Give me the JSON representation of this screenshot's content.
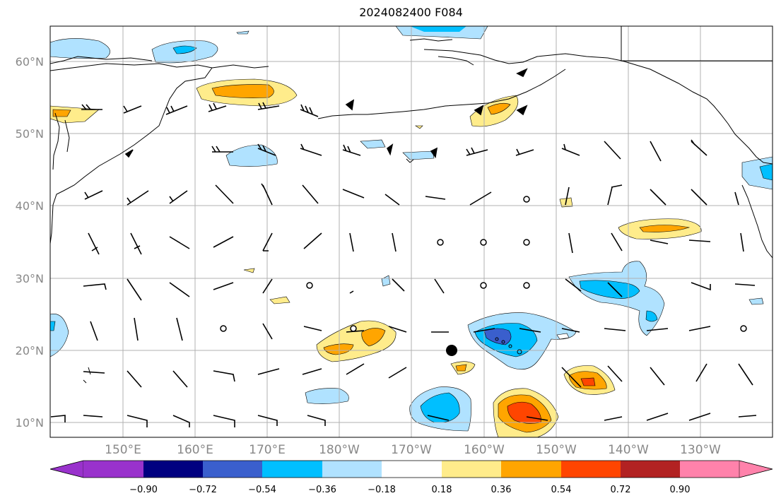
{
  "title": "2024082400 F084",
  "lat_labels": [
    "60°N",
    "50°N",
    "40°N",
    "30°N",
    "20°N",
    "10°N"
  ],
  "lon_labels": [
    "150°E",
    "160°E",
    "170°E",
    "180°W",
    "170°W",
    "160°W",
    "150°W",
    "140°W",
    "130°W"
  ],
  "colorbar": {
    "ticks": [
      "−0.90",
      "−0.72",
      "−0.54",
      "−0.36",
      "−0.18",
      "0.18",
      "0.36",
      "0.54",
      "0.72",
      "0.90"
    ],
    "colors": [
      "#9932CC",
      "#000080",
      "#3A5FCD",
      "#00BFFF",
      "#B0E2FF",
      "#FFFFFF",
      "#FFEC8B",
      "#FFA500",
      "#FF4500",
      "#B22222",
      "#FF82AB"
    ]
  },
  "colors": {
    "grid": "#b0b0b0",
    "coast": "#000000",
    "label": "#888888"
  },
  "map_extent": {
    "lon_min": 140,
    "lon_max": 240,
    "lat_min": 8,
    "lat_max": 65
  },
  "marker": {
    "lon": 195.5,
    "lat": 20
  }
}
